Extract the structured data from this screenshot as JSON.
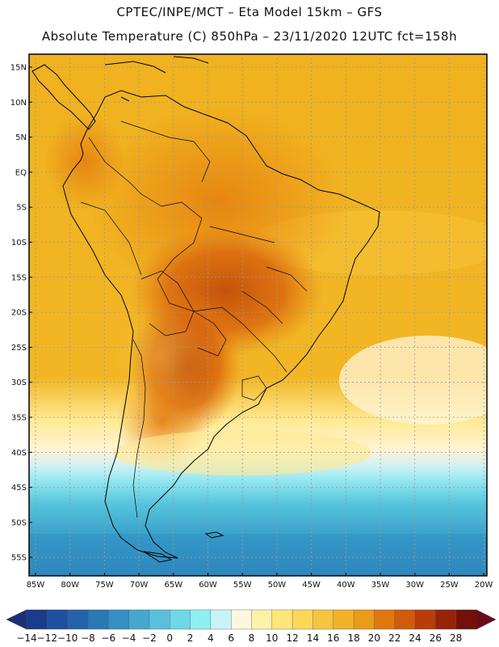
{
  "header": {
    "line1": "CPTEC/INPE/MCT –   Eta Model 15km – GFS",
    "line2": "Absolute Temperature (C) 850hPa – 23/11/2020 12UTC fct=158h"
  },
  "axes": {
    "lat_labels": [
      "15N",
      "10N",
      "5N",
      "EQ",
      "5S",
      "10S",
      "15S",
      "20S",
      "25S",
      "30S",
      "35S",
      "40S",
      "45S",
      "50S",
      "55S"
    ],
    "lon_labels": [
      "85W",
      "80W",
      "75W",
      "70W",
      "65W",
      "60W",
      "55W",
      "50W",
      "45W",
      "40W",
      "35W",
      "30W",
      "25W",
      "20W"
    ]
  },
  "colorbar": {
    "labels": [
      "-14",
      "-12",
      "-10",
      "-8",
      "-6",
      "-4",
      "-2",
      "0",
      "2",
      "4",
      "6",
      "8",
      "10",
      "12",
      "14",
      "16",
      "18",
      "20",
      "22",
      "24",
      "26",
      "28"
    ],
    "colors": [
      "#1a3c8c",
      "#1f4f9e",
      "#2463ac",
      "#2b78b6",
      "#3490c2",
      "#45a7d0",
      "#58c0dd",
      "#6ed8e7",
      "#8ef0f0",
      "#c6f5f9",
      "#fff6df",
      "#fff1a8",
      "#ffe57a",
      "#fcd75a",
      "#f6c440",
      "#f1b22a",
      "#eb9a1a",
      "#e0780f",
      "#d15a0b",
      "#b83d0a",
      "#962408",
      "#751007"
    ],
    "low_color": "#1d2f78",
    "high_color": "#6b0a18"
  },
  "map": {
    "ocean_color": "#f0b21e",
    "warm_color": "#e27910",
    "hot_color": "#c9550c",
    "cool_color": "#f7c848",
    "cold_band_colors": [
      "#ffe990",
      "#fff4d8",
      "#cdf1f5",
      "#8ee6ef",
      "#58c6de",
      "#3aa2cc",
      "#2d86be"
    ]
  }
}
